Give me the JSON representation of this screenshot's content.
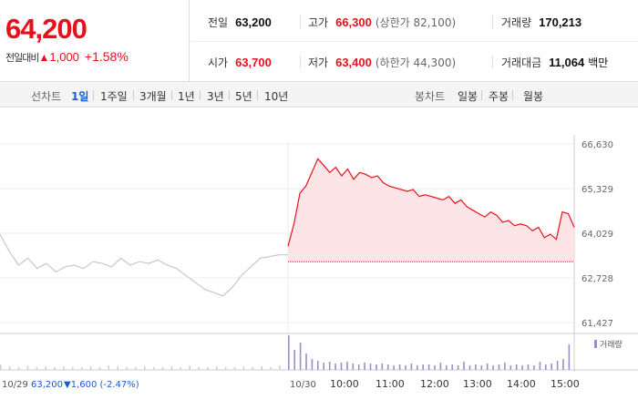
{
  "quote": {
    "price": "64,200",
    "change_label": "전일대비",
    "change_symbol": "▲",
    "change_value": "1,000",
    "change_pct": "+1.58%"
  },
  "stats": {
    "prev_close": {
      "label": "전일",
      "value": "63,200"
    },
    "high": {
      "label": "고가",
      "value": "66,300",
      "sub": "(상한가 82,100)"
    },
    "volume": {
      "label": "거래량",
      "value": "170,213"
    },
    "open": {
      "label": "시가",
      "value": "63,700"
    },
    "low": {
      "label": "저가",
      "value": "63,400",
      "sub": "(하한가 44,300)"
    },
    "amount": {
      "label": "거래대금",
      "value": "11,064",
      "unit": "백만"
    }
  },
  "line_chart_tabs": {
    "label": "선차트",
    "items": [
      "1일",
      "1주일",
      "3개월",
      "1년",
      "3년",
      "5년",
      "10년"
    ],
    "active": "1일"
  },
  "candle_chart_tabs": {
    "label": "봉차트",
    "items": [
      "일봉",
      "주봉",
      "월봉"
    ]
  },
  "chart_data": {
    "type": "line",
    "y_ticks": [
      "66,630",
      "65,329",
      "64,029",
      "62,728",
      "61,427"
    ],
    "ylim": [
      61427,
      66630
    ],
    "legend": "거래량",
    "prev_day": {
      "date_label": "10/29",
      "close_label": "63,200",
      "change_label": "▼1,600 (-2.47%)",
      "values": [
        64000,
        63500,
        63100,
        63300,
        63000,
        63150,
        62900,
        63050,
        63100,
        63000,
        63200,
        63150,
        63050,
        63300,
        63100,
        63200,
        63150,
        63250,
        63100,
        63000,
        62800,
        62600,
        62400,
        62300,
        62200,
        62450,
        62800,
        63050,
        63300,
        63350,
        63400,
        63400
      ]
    },
    "today": {
      "date_label": "10/30",
      "base": 63200,
      "x_labels": [
        "10:00",
        "11:00",
        "12:00",
        "13:00",
        "14:00",
        "15:00"
      ],
      "values": [
        63650,
        64300,
        65200,
        65400,
        65800,
        66200,
        66000,
        65800,
        65950,
        65700,
        65900,
        65600,
        65800,
        65750,
        65650,
        65700,
        65500,
        65400,
        65350,
        65300,
        65250,
        65300,
        65100,
        65150,
        65100,
        65050,
        65000,
        65100,
        64900,
        65000,
        64800,
        64700,
        64600,
        64500,
        64650,
        64550,
        64350,
        64400,
        64250,
        64300,
        64250,
        64100,
        64200,
        63900,
        64000,
        63850,
        64650,
        64600,
        64200
      ]
    },
    "volume": {
      "prev": [
        6,
        4,
        3,
        5,
        3,
        4,
        3,
        4,
        3,
        3,
        4,
        3,
        5,
        4,
        3,
        3,
        4,
        3,
        3,
        4,
        3,
        5,
        3,
        3,
        4,
        3,
        3,
        4,
        3,
        4,
        3,
        5
      ],
      "today": [
        38,
        22,
        30,
        18,
        12,
        10,
        8,
        9,
        7,
        8,
        9,
        7,
        6,
        8,
        7,
        6,
        7,
        6,
        5,
        6,
        5,
        7,
        5,
        6,
        6,
        5,
        8,
        5,
        6,
        5,
        9,
        5,
        6,
        5,
        7,
        5,
        6,
        8,
        5,
        6,
        5,
        6,
        5,
        9,
        6,
        7,
        10,
        12,
        28
      ]
    }
  }
}
